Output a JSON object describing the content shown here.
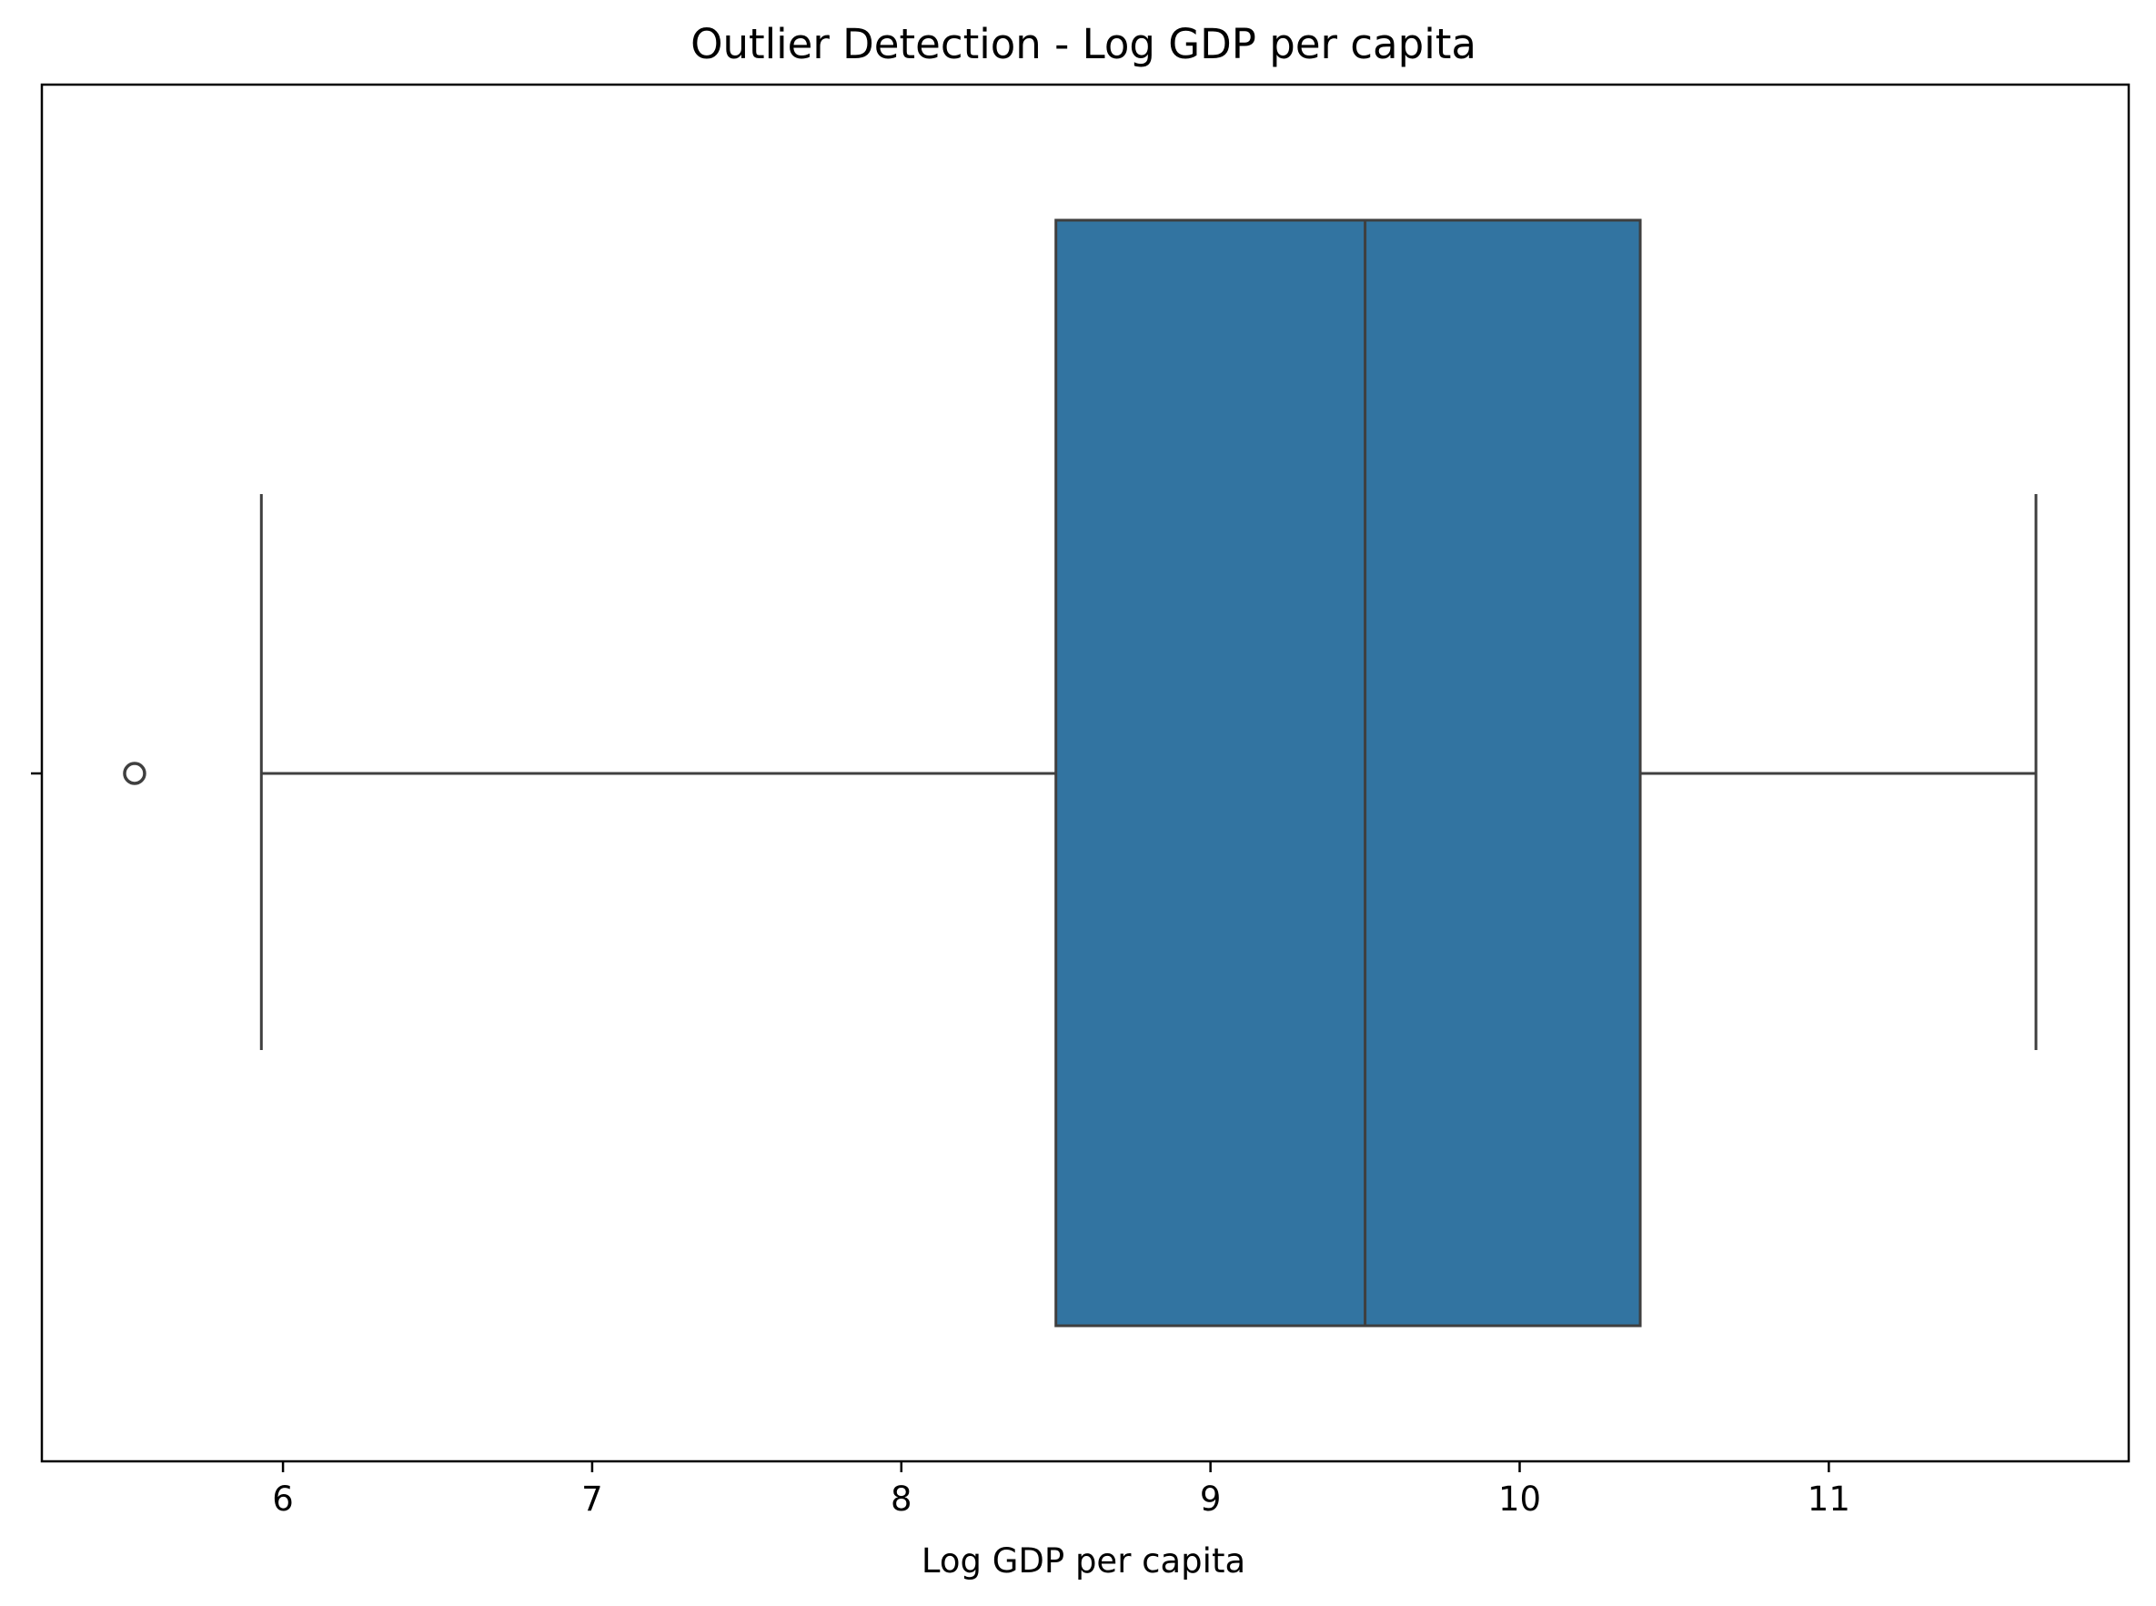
{
  "chart_data": {
    "type": "box",
    "orientation": "horizontal",
    "title": "Outlier Detection - Log GDP per capita",
    "xlabel": "Log GDP per capita",
    "ylabel": "",
    "xlim": [
      5.22,
      11.97
    ],
    "xticks": [
      6,
      7,
      8,
      9,
      10,
      11
    ],
    "xtick_labels": [
      "6",
      "7",
      "8",
      "9",
      "10",
      "11"
    ],
    "grid": false,
    "legend": "none",
    "box": {
      "whisker_low": 5.93,
      "q1": 8.5,
      "median": 9.5,
      "q3": 10.39,
      "whisker_high": 11.67,
      "outliers": [
        5.52
      ]
    },
    "colors": {
      "box_fill": "#3274a1",
      "line": "#3f3f3f",
      "axes": "#000000"
    }
  }
}
